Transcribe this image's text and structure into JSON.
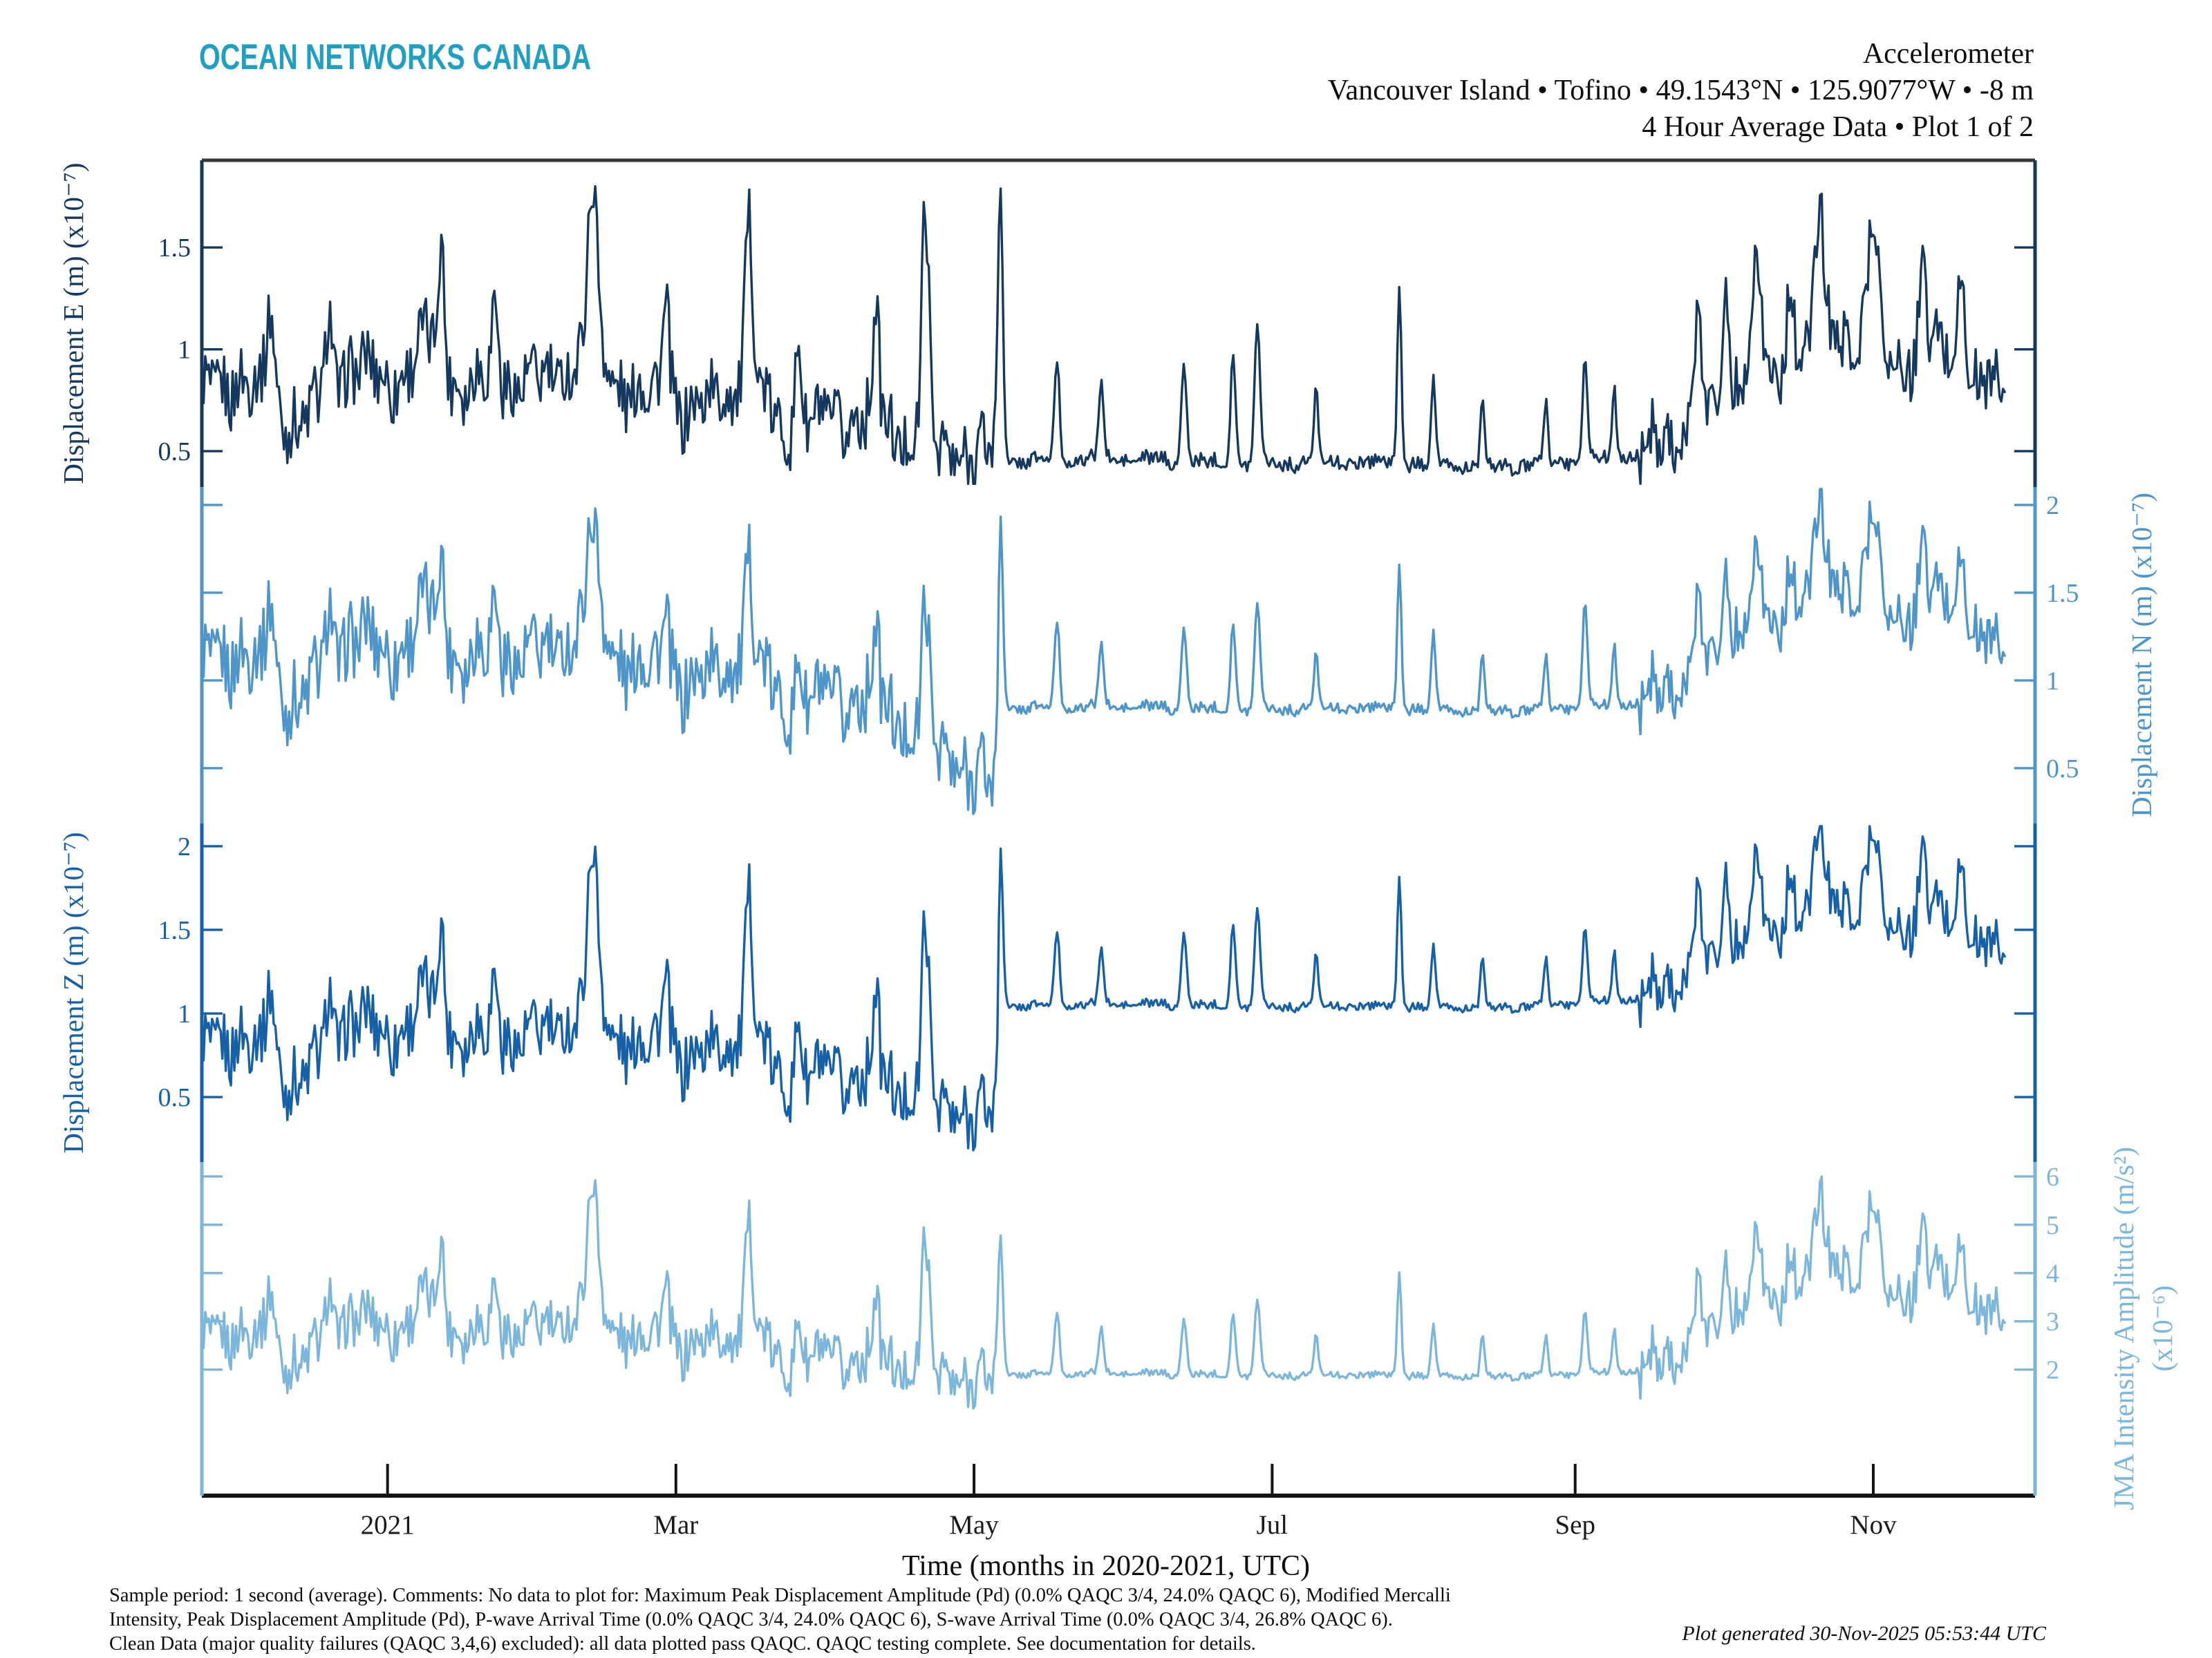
{
  "header": {
    "logo": "OCEAN NETWORKS CANADA",
    "title_line1": "Accelerometer",
    "title_line2": "Vancouver Island • Tofino • 49.1543°N • 125.9077°W • -8 m",
    "title_line3": "4 Hour Average Data • Plot 1 of 2"
  },
  "footer": {
    "line1": "Sample period: 1 second (average). Comments: No data to plot for: Maximum Peak Displacement Amplitude (Pd) (0.0% QAQC 3/4, 24.0% QAQC 6), Modified Mercalli",
    "line2": "Intensity, Peak Displacement Amplitude (Pd), P-wave Arrival Time (0.0% QAQC 3/4, 24.0% QAQC 6), S-wave Arrival Time (0.0% QAQC 3/4, 26.8% QAQC 6).",
    "line3": "Clean Data (major quality failures (QAQC 3,4,6) excluded): all data plotted pass QAQC. QAQC testing complete. See documentation for details.",
    "generated": "Plot generated 30-Nov-2025 05:53:44 UTC"
  },
  "chart_data": {
    "type": "line",
    "title": "Accelerometer — Vancouver Island, Tofino — 4 Hour Average Data, Plot 1 of 2",
    "xlabel": "Time (months in 2020-2021, UTC)",
    "x_unit": "days since 2020-11-24 (left edge of axes)",
    "x_domain_days": [
      0,
      375
    ],
    "x_ticks": [
      {
        "day": 38,
        "label": "2021"
      },
      {
        "day": 97,
        "label": "Mar"
      },
      {
        "day": 158,
        "label": "May"
      },
      {
        "day": 219,
        "label": "Jul"
      },
      {
        "day": 281,
        "label": "Sep"
      },
      {
        "day": 342,
        "label": "Nov"
      }
    ],
    "grid": false,
    "legend": "none (per-panel colored axes instead)",
    "quiet_period_days": [
      163,
      294
    ],
    "panels_note": "4 stacked panels sharing the x axis; a step change occurs ~06-May-2021 (quiet until ~14-Sep-2021), then activity resumes",
    "colors": {
      "axis_top": "#3a3a3a",
      "axis_bottom": "#141414",
      "x_text": "#1a1a1a"
    },
    "series": [
      {
        "name": "Displacement E",
        "axis_label": "Displacement E (m) (x10⁻⁷)",
        "side": "left",
        "color": "#15395e",
        "ylim": [
          0.324,
          1.928
        ],
        "yticks": [
          {
            "v": 1.5,
            "label": "1.5"
          },
          {
            "v": 1.0,
            "label": "1"
          },
          {
            "v": 0.5,
            "label": "0.5"
          }
        ],
        "clamp": [
          0.34,
          1.92
        ],
        "noise": [
          [
            0,
            163,
            0.17
          ],
          [
            163,
            294,
            0.035
          ],
          [
            294,
            370,
            0.16
          ]
        ],
        "envelope": [
          [
            0,
            0.72
          ],
          [
            8,
            0.88
          ],
          [
            14,
            0.75
          ],
          [
            22,
            0.68
          ],
          [
            30,
            0.95
          ],
          [
            38,
            0.8
          ],
          [
            46,
            1.0
          ],
          [
            54,
            0.82
          ],
          [
            62,
            0.9
          ],
          [
            70,
            0.85
          ],
          [
            78,
            1.02
          ],
          [
            86,
            0.8
          ],
          [
            94,
            0.72
          ],
          [
            102,
            0.68
          ],
          [
            110,
            0.88
          ],
          [
            118,
            0.68
          ],
          [
            126,
            0.62
          ],
          [
            134,
            0.66
          ],
          [
            142,
            0.56
          ],
          [
            150,
            0.52
          ],
          [
            158,
            0.5
          ],
          [
            162.8,
            0.52
          ],
          [
            163.3,
            0.46
          ],
          [
            200,
            0.45
          ],
          [
            240,
            0.44
          ],
          [
            270,
            0.43
          ],
          [
            293,
            0.47
          ],
          [
            298,
            0.55
          ],
          [
            304,
            0.62
          ],
          [
            310,
            0.78
          ],
          [
            316,
            0.95
          ],
          [
            322,
            0.82
          ],
          [
            328,
            1.0
          ],
          [
            334,
            1.02
          ],
          [
            340,
            1.08
          ],
          [
            346,
            0.92
          ],
          [
            352,
            1.0
          ],
          [
            358,
            1.02
          ],
          [
            364,
            0.84
          ],
          [
            369,
            0.8
          ]
        ]
      },
      {
        "name": "Displacement N",
        "axis_label": "Displacement N (m) (x10⁻⁷)",
        "side": "right",
        "color": "#4e95c9",
        "ylim": [
          0.185,
          2.102
        ],
        "yticks": [
          {
            "v": 2.0,
            "label": "2"
          },
          {
            "v": 1.5,
            "label": "1.5"
          },
          {
            "v": 1.0,
            "label": "1"
          },
          {
            "v": 0.5,
            "label": "0.5"
          }
        ],
        "clamp": [
          0.2,
          2.09
        ],
        "noise": [
          [
            0,
            163,
            0.22
          ],
          [
            163,
            294,
            0.03
          ],
          [
            294,
            370,
            0.17
          ]
        ],
        "envelope": [
          [
            0,
            1.0
          ],
          [
            8,
            1.2
          ],
          [
            14,
            1.02
          ],
          [
            22,
            0.95
          ],
          [
            30,
            1.3
          ],
          [
            38,
            1.1
          ],
          [
            46,
            1.35
          ],
          [
            54,
            1.12
          ],
          [
            62,
            1.22
          ],
          [
            70,
            1.15
          ],
          [
            78,
            1.38
          ],
          [
            86,
            1.1
          ],
          [
            94,
            1.0
          ],
          [
            102,
            0.95
          ],
          [
            110,
            1.2
          ],
          [
            118,
            0.95
          ],
          [
            126,
            0.85
          ],
          [
            134,
            0.9
          ],
          [
            142,
            0.75
          ],
          [
            150,
            0.62
          ],
          [
            158,
            0.5
          ],
          [
            162.8,
            0.38
          ],
          [
            163.3,
            0.85
          ],
          [
            200,
            0.84
          ],
          [
            240,
            0.84
          ],
          [
            270,
            0.83
          ],
          [
            293,
            0.86
          ],
          [
            298,
            0.95
          ],
          [
            304,
            1.02
          ],
          [
            310,
            1.2
          ],
          [
            316,
            1.42
          ],
          [
            322,
            1.25
          ],
          [
            328,
            1.48
          ],
          [
            334,
            1.5
          ],
          [
            340,
            1.55
          ],
          [
            346,
            1.35
          ],
          [
            352,
            1.45
          ],
          [
            358,
            1.5
          ],
          [
            364,
            1.25
          ],
          [
            369,
            1.15
          ]
        ]
      },
      {
        "name": "Displacement Z",
        "axis_label": "Displacement Z (m) (x10⁻⁷)",
        "side": "left",
        "color": "#1660a7",
        "ylim": [
          0.112,
          2.136
        ],
        "yticks": [
          {
            "v": 2.0,
            "label": "2"
          },
          {
            "v": 1.5,
            "label": "1.5"
          },
          {
            "v": 1.0,
            "label": "1"
          },
          {
            "v": 0.5,
            "label": "0.5"
          }
        ],
        "clamp": [
          0.13,
          2.12
        ],
        "noise": [
          [
            0,
            163,
            0.2
          ],
          [
            163,
            294,
            0.025
          ],
          [
            294,
            370,
            0.16
          ]
        ],
        "envelope": [
          [
            0,
            0.7
          ],
          [
            8,
            0.9
          ],
          [
            14,
            0.72
          ],
          [
            22,
            0.65
          ],
          [
            30,
            1.0
          ],
          [
            38,
            0.82
          ],
          [
            46,
            1.05
          ],
          [
            54,
            0.85
          ],
          [
            62,
            0.92
          ],
          [
            70,
            0.88
          ],
          [
            78,
            1.08
          ],
          [
            86,
            0.82
          ],
          [
            94,
            0.75
          ],
          [
            102,
            0.7
          ],
          [
            110,
            0.92
          ],
          [
            118,
            0.68
          ],
          [
            126,
            0.6
          ],
          [
            134,
            0.62
          ],
          [
            142,
            0.52
          ],
          [
            150,
            0.46
          ],
          [
            158,
            0.42
          ],
          [
            162.8,
            0.4
          ],
          [
            163.3,
            1.05
          ],
          [
            200,
            1.05
          ],
          [
            240,
            1.04
          ],
          [
            270,
            1.04
          ],
          [
            293,
            1.08
          ],
          [
            298,
            1.15
          ],
          [
            304,
            1.25
          ],
          [
            310,
            1.38
          ],
          [
            316,
            1.55
          ],
          [
            322,
            1.42
          ],
          [
            328,
            1.6
          ],
          [
            334,
            1.62
          ],
          [
            340,
            1.68
          ],
          [
            346,
            1.5
          ],
          [
            352,
            1.6
          ],
          [
            358,
            1.62
          ],
          [
            364,
            1.42
          ],
          [
            369,
            1.35
          ]
        ]
      },
      {
        "name": "JMA Intensity Amplitude",
        "axis_label": "JMA Intensity Amplitude (m/s²)",
        "axis_label_line2": "(x10⁻⁶)",
        "side": "right",
        "color": "#7db6db",
        "ylim": [
          -0.61,
          6.3
        ],
        "yticks": [
          {
            "v": 6,
            "label": "6"
          },
          {
            "v": 5,
            "label": "5"
          },
          {
            "v": 4,
            "label": "4"
          },
          {
            "v": 3,
            "label": "3"
          },
          {
            "v": 2,
            "label": "2"
          }
        ],
        "clamp": [
          1.15,
          6.27
        ],
        "noise": [
          [
            0,
            163,
            0.55
          ],
          [
            163,
            294,
            0.07
          ],
          [
            294,
            370,
            0.55
          ]
        ],
        "envelope": [
          [
            0,
            2.4
          ],
          [
            8,
            2.9
          ],
          [
            14,
            2.5
          ],
          [
            22,
            2.3
          ],
          [
            30,
            3.2
          ],
          [
            38,
            2.7
          ],
          [
            46,
            3.3
          ],
          [
            54,
            2.75
          ],
          [
            62,
            3.0
          ],
          [
            70,
            2.85
          ],
          [
            78,
            3.45
          ],
          [
            86,
            2.7
          ],
          [
            94,
            2.5
          ],
          [
            102,
            2.4
          ],
          [
            110,
            2.95
          ],
          [
            118,
            2.35
          ],
          [
            126,
            2.15
          ],
          [
            134,
            2.2
          ],
          [
            142,
            2.0
          ],
          [
            150,
            1.95
          ],
          [
            158,
            1.85
          ],
          [
            162.8,
            1.8
          ],
          [
            163.3,
            1.92
          ],
          [
            200,
            1.9
          ],
          [
            240,
            1.88
          ],
          [
            270,
            1.87
          ],
          [
            293,
            1.95
          ],
          [
            298,
            2.2
          ],
          [
            304,
            2.5
          ],
          [
            310,
            3.0
          ],
          [
            316,
            3.7
          ],
          [
            322,
            3.2
          ],
          [
            328,
            3.9
          ],
          [
            334,
            4.0
          ],
          [
            340,
            4.2
          ],
          [
            346,
            3.5
          ],
          [
            352,
            3.9
          ],
          [
            358,
            4.0
          ],
          [
            364,
            3.2
          ],
          [
            369,
            3.0
          ]
        ]
      }
    ],
    "events": [
      {
        "day": 14,
        "w": 0.8,
        "amps": [
          0.45,
          0.45,
          0.45,
          1.2
        ]
      },
      {
        "day": 26,
        "w": 0.7,
        "amps": [
          0.35,
          0.3,
          0.3,
          0.9
        ]
      },
      {
        "day": 49,
        "w": 0.6,
        "amps": [
          0.55,
          0.4,
          0.5,
          1.4
        ]
      },
      {
        "day": 60,
        "w": 0.5,
        "amps": [
          0.4,
          0.3,
          0.35,
          0.9
        ]
      },
      {
        "day": 80,
        "w": 0.9,
        "amps": [
          0.85,
          0.62,
          1.0,
          2.7
        ]
      },
      {
        "day": 95,
        "w": 0.7,
        "amps": [
          0.5,
          0.35,
          0.45,
          1.2
        ]
      },
      {
        "day": 112,
        "w": 0.8,
        "amps": [
          0.8,
          0.55,
          0.85,
          2.2
        ]
      },
      {
        "day": 122,
        "w": 0.6,
        "amps": [
          0.45,
          0.3,
          0.4,
          1.0
        ]
      },
      {
        "day": 138,
        "w": 0.6,
        "amps": [
          0.5,
          0.35,
          0.45,
          1.1
        ]
      },
      {
        "day": 148,
        "w": 0.7,
        "amps": [
          1.1,
          0.7,
          1.0,
          2.6
        ]
      },
      {
        "day": 163.4,
        "w": 0.5,
        "amps": [
          1.35,
          1.1,
          0.95,
          2.9
        ]
      },
      {
        "day": 175,
        "w": 0.5,
        "amps": [
          0.5,
          0.5,
          0.45,
          1.3
        ]
      },
      {
        "day": 184,
        "w": 0.45,
        "amps": [
          0.4,
          0.38,
          0.35,
          1.0
        ]
      },
      {
        "day": 201,
        "w": 0.5,
        "amps": [
          0.5,
          0.48,
          0.45,
          1.2
        ]
      },
      {
        "day": 211,
        "w": 0.5,
        "amps": [
          0.55,
          0.5,
          0.5,
          1.3
        ]
      },
      {
        "day": 216,
        "w": 0.55,
        "amps": [
          0.7,
          0.62,
          0.6,
          1.6
        ]
      },
      {
        "day": 228,
        "w": 0.45,
        "amps": [
          0.35,
          0.3,
          0.3,
          0.8
        ]
      },
      {
        "day": 245,
        "w": 0.4,
        "amps": [
          0.9,
          0.85,
          0.8,
          2.2
        ]
      },
      {
        "day": 252,
        "w": 0.45,
        "amps": [
          0.4,
          0.42,
          0.35,
          1.0
        ]
      },
      {
        "day": 262,
        "w": 0.4,
        "amps": [
          0.3,
          0.3,
          0.28,
          0.8
        ]
      },
      {
        "day": 275,
        "w": 0.4,
        "amps": [
          0.3,
          0.3,
          0.28,
          0.8
        ]
      },
      {
        "day": 283,
        "w": 0.5,
        "amps": [
          0.5,
          0.6,
          0.45,
          1.3
        ]
      },
      {
        "day": 289,
        "w": 0.4,
        "amps": [
          0.35,
          0.35,
          0.3,
          0.9
        ]
      },
      {
        "day": 306,
        "w": 0.8,
        "amps": [
          0.5,
          0.4,
          0.45,
          1.2
        ]
      },
      {
        "day": 312,
        "w": 0.6,
        "amps": [
          0.45,
          0.35,
          0.4,
          1.0
        ]
      },
      {
        "day": 318,
        "w": 0.9,
        "amps": [
          0.6,
          0.45,
          0.5,
          1.5
        ]
      },
      {
        "day": 325,
        "w": 0.6,
        "amps": [
          0.5,
          0.4,
          0.45,
          1.2
        ]
      },
      {
        "day": 331,
        "w": 0.8,
        "amps": [
          0.65,
          0.5,
          0.55,
          1.6
        ]
      },
      {
        "day": 342,
        "w": 0.9,
        "amps": [
          0.62,
          0.5,
          0.5,
          1.6
        ]
      },
      {
        "day": 352,
        "w": 0.6,
        "amps": [
          0.5,
          0.42,
          0.45,
          1.3
        ]
      },
      {
        "day": 360,
        "w": 0.6,
        "amps": [
          0.55,
          0.45,
          0.5,
          1.4
        ]
      }
    ]
  }
}
